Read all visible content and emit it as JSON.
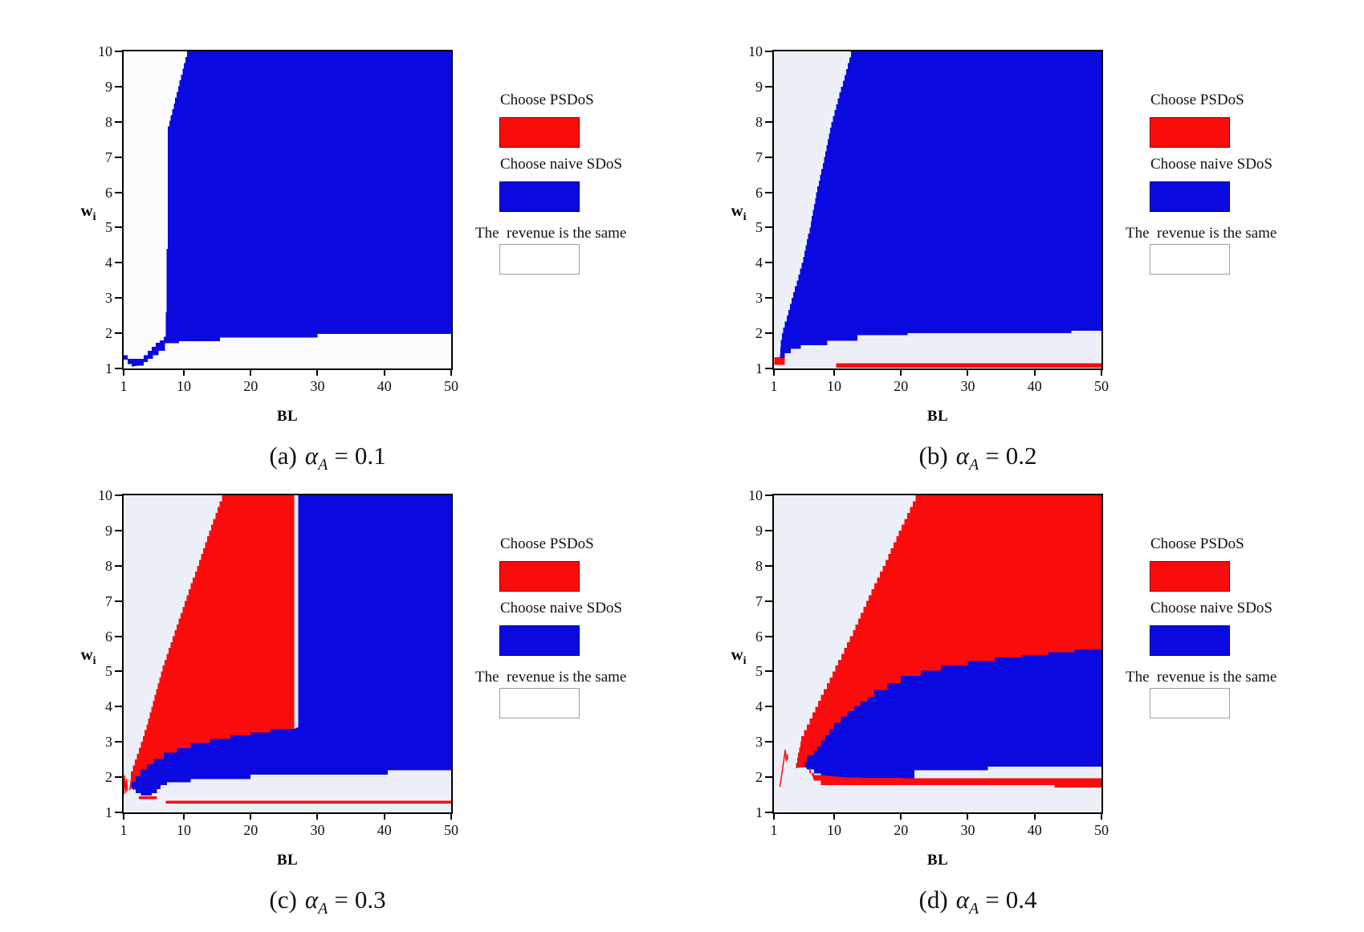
{
  "page": {
    "background": "#ffffff"
  },
  "colors": {
    "red": "#fa0c0c",
    "blue": "#0a0ae0",
    "white_a": "#fcfcfe",
    "lavender": "#edeff8",
    "axis": "#000000",
    "white_swatch": "#ffffff"
  },
  "axes": {
    "x_label": "BL",
    "y_label": "w",
    "y_label_sub": "i",
    "x_ticks": [
      1,
      10,
      20,
      30,
      40,
      50
    ],
    "y_ticks": [
      1,
      2,
      3,
      4,
      5,
      6,
      7,
      8,
      9,
      10
    ],
    "x_range": [
      1,
      50
    ],
    "y_range": [
      1,
      10
    ]
  },
  "legend": {
    "items": [
      {
        "label": "Choose PSDoS",
        "color": "red"
      },
      {
        "label": "Choose naive SDoS",
        "color": "blue"
      },
      {
        "label": "The  revenue is the same",
        "color": "white_swatch"
      }
    ]
  },
  "caption_format": {
    "symbol": "α",
    "sub": "A",
    "equals": "="
  },
  "chart_data": [
    {
      "id": "a",
      "type": "region-map",
      "caption": {
        "prefix": "(a)",
        "value": "0.1"
      },
      "bg": "white_a",
      "regions": [
        {
          "color": "blue",
          "stepped": true,
          "points": [
            [
              1,
              1.61
            ],
            [
              1.6,
              1.38
            ],
            [
              2.3,
              1.27
            ],
            [
              4,
              1.27
            ],
            [
              4.6,
              1.38
            ],
            [
              5.2,
              1.5
            ],
            [
              5.8,
              1.62
            ],
            [
              6.4,
              1.73
            ],
            [
              7.2,
              1.8
            ],
            [
              7.2,
              1.6
            ],
            [
              6.2,
              1.5
            ],
            [
              5.4,
              1.38
            ],
            [
              4.6,
              1.27
            ],
            [
              4,
              1.18
            ],
            [
              3.2,
              1.08
            ],
            [
              2.2,
              1.05
            ],
            [
              1.6,
              1.12
            ],
            [
              1,
              1.25
            ]
          ]
        },
        {
          "color": "blue",
          "stepped": true,
          "points": [
            [
              50,
              10
            ],
            [
              50,
              1.98
            ],
            [
              30,
              1.98
            ],
            [
              30,
              1.88
            ],
            [
              15.4,
              1.88
            ],
            [
              15.4,
              1.78
            ],
            [
              9.3,
              1.78
            ],
            [
              9.3,
              1.72
            ],
            [
              7,
              1.72
            ],
            [
              7,
              1.9
            ],
            [
              7.3,
              1.9
            ],
            [
              7.3,
              2.6
            ],
            [
              7.45,
              2.6
            ],
            [
              7.45,
              4.4
            ],
            [
              7.6,
              4.4
            ],
            [
              7.6,
              7.7
            ],
            [
              10.7,
              10
            ]
          ]
        }
      ],
      "lines": []
    },
    {
      "id": "b",
      "type": "region-map",
      "caption": {
        "prefix": "(b)",
        "value": "0.2"
      },
      "bg": "lavender",
      "regions": [
        {
          "color": "red",
          "points": [
            [
              1.05,
              1.32
            ],
            [
              2.6,
              1.32
            ],
            [
              2.6,
              1.1
            ],
            [
              1.05,
              1.1
            ]
          ]
        },
        {
          "color": "blue",
          "stepped": true,
          "points": [
            [
              50,
              10
            ],
            [
              50,
              2.07
            ],
            [
              45.5,
              2.07
            ],
            [
              45.5,
              2.0
            ],
            [
              21,
              2.0
            ],
            [
              21,
              1.94
            ],
            [
              13.5,
              1.94
            ],
            [
              13.5,
              1.79
            ],
            [
              9,
              1.79
            ],
            [
              9,
              1.74
            ],
            [
              5,
              1.66
            ],
            [
              3.5,
              1.56
            ],
            [
              2.6,
              1.43
            ],
            [
              1.9,
              1.3
            ],
            [
              2.0,
              1.62
            ],
            [
              2.4,
              2
            ],
            [
              3.9,
              3
            ],
            [
              5.4,
              4
            ],
            [
              6.5,
              5
            ],
            [
              7.5,
              6
            ],
            [
              8.7,
              7
            ],
            [
              9.8,
              8
            ],
            [
              11.3,
              9
            ],
            [
              12.8,
              10
            ]
          ]
        },
        {
          "color": "red",
          "points": [
            [
              10.3,
              1.15
            ],
            [
              50,
              1.15
            ],
            [
              50,
              1.02
            ],
            [
              10.3,
              1.02
            ]
          ]
        }
      ],
      "lines": []
    },
    {
      "id": "c",
      "type": "region-map",
      "caption": {
        "prefix": "(c)",
        "value": "0.3"
      },
      "bg": "lavender",
      "regions": [
        {
          "color": "red",
          "stepped": true,
          "points": [
            [
              1.8,
              1.6
            ],
            [
              2.1,
              2
            ],
            [
              3.9,
              3
            ],
            [
              5.4,
              4
            ],
            [
              6.8,
              5
            ],
            [
              8.6,
              6
            ],
            [
              10.4,
              7
            ],
            [
              12.3,
              8
            ],
            [
              14.1,
              9
            ],
            [
              16,
              10
            ],
            [
              26.5,
              10
            ],
            [
              26.5,
              3.35
            ],
            [
              23,
              3.25
            ],
            [
              20,
              3.17
            ],
            [
              17,
              3.06
            ],
            [
              14,
              2.95
            ],
            [
              11,
              2.8
            ],
            [
              9,
              2.68
            ],
            [
              7,
              2.5
            ],
            [
              5.5,
              2.35
            ],
            [
              4.5,
              2.2
            ],
            [
              3.5,
              2.0
            ],
            [
              2.8,
              1.85
            ],
            [
              2.2,
              1.7
            ]
          ]
        },
        {
          "color": "blue",
          "stepped": true,
          "points": [
            [
              2.2,
              1.72
            ],
            [
              2.8,
              1.87
            ],
            [
              3.5,
              2.02
            ],
            [
              4.5,
              2.22
            ],
            [
              5.5,
              2.37
            ],
            [
              7,
              2.52
            ],
            [
              9,
              2.7
            ],
            [
              11,
              2.82
            ],
            [
              14,
              2.97
            ],
            [
              17,
              3.08
            ],
            [
              20,
              3.19
            ],
            [
              23,
              3.27
            ],
            [
              26.5,
              3.37
            ],
            [
              27.1,
              3.42
            ],
            [
              27.1,
              2.07
            ],
            [
              20,
              2.07
            ],
            [
              20,
              1.95
            ],
            [
              11,
              1.95
            ],
            [
              11,
              1.86
            ],
            [
              7.5,
              1.86
            ],
            [
              6.5,
              1.78
            ],
            [
              6,
              1.66
            ],
            [
              5.2,
              1.55
            ],
            [
              4.5,
              1.48
            ],
            [
              3.6,
              1.48
            ],
            [
              2.8,
              1.55
            ],
            [
              2.3,
              1.65
            ]
          ]
        },
        {
          "color": "blue",
          "points": [
            [
              27.1,
              10
            ],
            [
              50,
              10
            ],
            [
              50,
              2.2
            ],
            [
              40.5,
              2.2
            ],
            [
              40.5,
              2.07
            ],
            [
              27.1,
              2.07
            ]
          ]
        },
        {
          "color": "red",
          "points": [
            [
              3.3,
              1.46
            ],
            [
              6,
              1.46
            ],
            [
              6,
              1.38
            ],
            [
              3.3,
              1.38
            ]
          ]
        },
        {
          "color": "red",
          "points": [
            [
              7.3,
              1.33
            ],
            [
              50,
              1.33
            ],
            [
              50,
              1.25
            ],
            [
              7.3,
              1.25
            ]
          ]
        }
      ],
      "lines": [
        {
          "color": "red",
          "width": 1.5,
          "points": [
            [
              1,
              1.5
            ],
            [
              1.15,
              2.05
            ],
            [
              1.3,
              1.55
            ],
            [
              1.45,
              1.95
            ],
            [
              1.55,
              1.6
            ]
          ]
        }
      ]
    },
    {
      "id": "d",
      "type": "region-map",
      "caption": {
        "prefix": "(d)",
        "value": "0.4"
      },
      "bg": "lavender",
      "regions": [
        {
          "color": "red",
          "stepped": true,
          "points": [
            [
              4.3,
              2.25
            ],
            [
              5.1,
              3
            ],
            [
              7.6,
              4
            ],
            [
              10.2,
              5
            ],
            [
              12.8,
              6
            ],
            [
              15.2,
              7
            ],
            [
              17.7,
              8
            ],
            [
              20.1,
              9
            ],
            [
              22.6,
              10
            ],
            [
              50,
              10
            ],
            [
              50,
              5.6
            ],
            [
              46,
              5.52
            ],
            [
              42,
              5.45
            ],
            [
              38,
              5.38
            ],
            [
              34,
              5.28
            ],
            [
              30,
              5.15
            ],
            [
              26,
              5.0
            ],
            [
              23,
              4.85
            ],
            [
              20,
              4.65
            ],
            [
              18,
              4.45
            ],
            [
              16,
              4.25
            ],
            [
              14,
              4.0
            ],
            [
              12,
              3.7
            ],
            [
              10,
              3.35
            ],
            [
              8,
              2.85
            ],
            [
              7,
              2.6
            ],
            [
              6,
              2.4
            ],
            [
              5,
              2.28
            ]
          ]
        },
        {
          "color": "blue",
          "stepped": true,
          "points": [
            [
              5.6,
              2.32
            ],
            [
              6,
              2.42
            ],
            [
              7,
              2.62
            ],
            [
              8,
              2.87
            ],
            [
              10,
              3.37
            ],
            [
              12,
              3.72
            ],
            [
              14,
              4.02
            ],
            [
              16,
              4.27
            ],
            [
              18,
              4.47
            ],
            [
              20,
              4.67
            ],
            [
              23,
              4.87
            ],
            [
              26,
              5.02
            ],
            [
              30,
              5.17
            ],
            [
              34,
              5.3
            ],
            [
              38,
              5.4
            ],
            [
              42,
              5.47
            ],
            [
              46,
              5.54
            ],
            [
              50,
              5.62
            ],
            [
              50,
              2.3
            ],
            [
              33,
              2.3
            ],
            [
              33,
              2.2
            ],
            [
              22,
              2.2
            ],
            [
              22,
              1.95
            ],
            [
              12,
              1.97
            ],
            [
              10,
              2.0
            ],
            [
              8,
              2.04
            ],
            [
              7,
              2.1
            ],
            [
              6,
              2.22
            ]
          ]
        },
        {
          "color": "red",
          "stepped": true,
          "points": [
            [
              6.3,
              2.3
            ],
            [
              7,
              2.12
            ],
            [
              8,
              2.06
            ],
            [
              10,
              2.02
            ],
            [
              12,
              1.99
            ],
            [
              22,
              1.97
            ],
            [
              50,
              1.97
            ],
            [
              50,
              1.71
            ],
            [
              43,
              1.71
            ],
            [
              43,
              1.78
            ],
            [
              8,
              1.78
            ],
            [
              7,
              1.9
            ]
          ]
        },
        {
          "color": "blue",
          "points": [
            [
              2.95,
              2.62
            ],
            [
              3.1,
              2.62
            ],
            [
              3.1,
              2.5
            ],
            [
              2.95,
              2.5
            ]
          ]
        }
      ],
      "lines": [
        {
          "color": "red",
          "width": 1.5,
          "points": [
            [
              1.9,
              1.72
            ],
            [
              2.7,
              2.78
            ],
            [
              2.85,
              2.45
            ],
            [
              3.05,
              2.65
            ]
          ]
        }
      ]
    }
  ]
}
